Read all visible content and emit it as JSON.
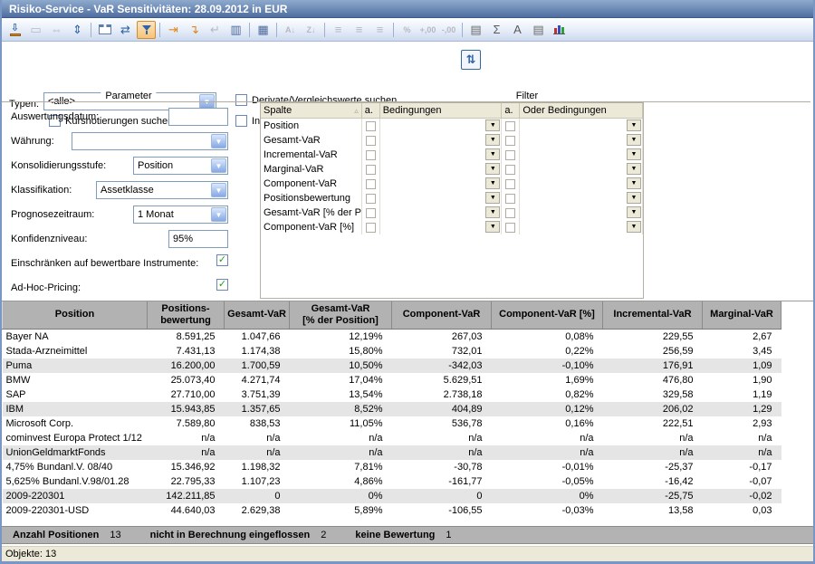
{
  "window": {
    "title": "Risiko-Service - VaR Sensitivitäten: 28.09.2012 in EUR"
  },
  "colors": {
    "titlebar_top": "#8ea9cc",
    "titlebar_bottom": "#4e6d9f",
    "active_tool_accent": "#d28a2c",
    "check_green": "#1fa11f",
    "table_header_gray": "#b2b2b2",
    "shaded_row": "#e5e5e5",
    "statusbar_beige": "#ece9d8"
  },
  "toolbar": {
    "icons": [
      {
        "name": "export-icon",
        "special": "export",
        "state": "enabled"
      },
      {
        "name": "zoom-selection-icon",
        "glyph": "▭",
        "state": "disabled"
      },
      {
        "name": "fit-width-icon",
        "glyph": "⇔",
        "state": "disabled"
      },
      {
        "name": "fit-height-icon",
        "glyph": "⇕",
        "color": "#2e63a8",
        "state": "enabled"
      },
      {
        "sep": true
      },
      {
        "name": "new-window-icon",
        "special": "window",
        "state": "enabled"
      },
      {
        "name": "refresh-icon",
        "glyph": "⇄",
        "color": "#2e63a8",
        "state": "enabled"
      },
      {
        "name": "filter-icon",
        "special": "funnel",
        "state": "active"
      },
      {
        "sep": true
      },
      {
        "name": "insert-column-icon",
        "glyph": "⇥",
        "color": "#e0871a",
        "state": "enabled"
      },
      {
        "name": "insert-value-icon",
        "glyph": "↴",
        "color": "#e0871a",
        "state": "enabled"
      },
      {
        "name": "remove-value-icon",
        "glyph": "↵",
        "state": "disabled"
      },
      {
        "name": "column-options-icon",
        "glyph": "▥",
        "color": "#4a6a9d",
        "state": "enabled"
      },
      {
        "sep": true
      },
      {
        "name": "show-columns-icon",
        "glyph": "▦",
        "color": "#4a6a9d",
        "state": "enabled"
      },
      {
        "sep": true
      },
      {
        "name": "sort-ascending-icon",
        "text": "A↓",
        "state": "disabled"
      },
      {
        "name": "sort-descending-icon",
        "text": "Z↓",
        "state": "disabled"
      },
      {
        "sep": true
      },
      {
        "name": "align-left-icon",
        "glyph": "≡",
        "state": "disabled"
      },
      {
        "name": "align-center-icon",
        "glyph": "≡",
        "state": "disabled"
      },
      {
        "name": "align-right-icon",
        "glyph": "≡",
        "state": "disabled"
      },
      {
        "sep": true
      },
      {
        "name": "percent-format-icon",
        "text": "%",
        "state": "disabled"
      },
      {
        "name": "add-decimal-icon",
        "text": "+,00",
        "state": "disabled"
      },
      {
        "name": "remove-decimal-icon",
        "text": "-,00",
        "state": "disabled"
      },
      {
        "sep": true
      },
      {
        "name": "value-options-icon",
        "glyph": "▤",
        "color": "#6a6a6a",
        "state": "enabled"
      },
      {
        "name": "sum-icon",
        "glyph": "Σ",
        "color": "#5a5a5a",
        "state": "enabled"
      },
      {
        "name": "font-icon",
        "glyph": "A",
        "color": "#5a5a5a",
        "state": "enabled"
      },
      {
        "name": "format-options-icon",
        "glyph": "▤",
        "color": "#6a6a6a",
        "state": "enabled"
      },
      {
        "name": "chart-icon",
        "special": "chart",
        "colors": [
          "#c03030",
          "#3050c0",
          "#30a030"
        ],
        "state": "enabled"
      }
    ]
  },
  "form": {
    "typen_label": "Typen:",
    "typen_value": "<alle>",
    "kursnotierungen_checkbox": "Kursnotierungen suchen",
    "derivate_checkbox": "Derivate/Vergleichswerte suchen",
    "index_checkbox": "Indexzusammenstellungen darstellen"
  },
  "parameter_panel": {
    "caption": "Parameter",
    "fields": [
      {
        "name": "auswertungsdatum-input",
        "label": "Auswertungsdatum:",
        "type": "input",
        "value": ""
      },
      {
        "name": "waehrung-select",
        "label": "Währung:",
        "type": "select",
        "value": ""
      },
      {
        "name": "konsolidierungsstufe-select",
        "label": "Konsolidierungsstufe:",
        "type": "select",
        "value": "Position"
      },
      {
        "name": "klassifikation-select",
        "label": "Klassifikation:",
        "type": "select",
        "value": "Assetklasse"
      },
      {
        "name": "prognosezeitraum-select",
        "label": "Prognosezeitraum:",
        "type": "select",
        "value": "1 Monat"
      },
      {
        "name": "konfidenzniveau-input",
        "label": "Konfidenzniveau:",
        "type": "input",
        "value": "95%"
      },
      {
        "name": "bewertbare-instrumente-checkbox",
        "label": "Einschränken auf bewertbare Instrumente:",
        "type": "checkbox",
        "checked": true
      },
      {
        "name": "adhoc-pricing-checkbox",
        "label": "Ad-Hoc-Pricing:",
        "type": "checkbox",
        "checked": true
      }
    ]
  },
  "filter_panel": {
    "caption": "Filter",
    "columns": [
      "Spalte",
      "a.",
      "Bedingungen",
      "a.",
      "Oder Bedingungen"
    ],
    "rows": [
      "Position",
      "Gesamt-VaR",
      "Incremental-VaR",
      "Marginal-VaR",
      "Component-VaR",
      "Positionsbewertung",
      "Gesamt-VaR [% der Position]",
      "Component-VaR [%]"
    ]
  },
  "table": {
    "columns": [
      {
        "l1": "Position",
        "l2": ""
      },
      {
        "l1": "Positions-",
        "l2": "bewertung"
      },
      {
        "l1": "Gesamt-VaR",
        "l2": ""
      },
      {
        "l1": "Gesamt-VaR",
        "l2": "[% der Position]"
      },
      {
        "l1": "Component-VaR",
        "l2": ""
      },
      {
        "l1": "Component-VaR [%]",
        "l2": ""
      },
      {
        "l1": "Incremental-VaR",
        "l2": ""
      },
      {
        "l1": "Marginal-VaR",
        "l2": ""
      }
    ],
    "rows": [
      [
        "Bayer NA",
        "8.591,25",
        "1.047,66",
        "12,19%",
        "267,03",
        "0,08%",
        "229,55",
        "2,67"
      ],
      [
        "Stada-Arzneimittel",
        "7.431,13",
        "1.174,38",
        "15,80%",
        "732,01",
        "0,22%",
        "256,59",
        "3,45"
      ],
      [
        "Puma",
        "16.200,00",
        "1.700,59",
        "10,50%",
        "-342,03",
        "-0,10%",
        "176,91",
        "1,09"
      ],
      [
        "BMW",
        "25.073,40",
        "4.271,74",
        "17,04%",
        "5.629,51",
        "1,69%",
        "476,80",
        "1,90"
      ],
      [
        "SAP",
        "27.710,00",
        "3.751,39",
        "13,54%",
        "2.738,18",
        "0,82%",
        "329,58",
        "1,19"
      ],
      [
        "IBM",
        "15.943,85",
        "1.357,65",
        "8,52%",
        "404,89",
        "0,12%",
        "206,02",
        "1,29"
      ],
      [
        "Microsoft Corp.",
        "7.589,80",
        "838,53",
        "11,05%",
        "536,78",
        "0,16%",
        "222,51",
        "2,93"
      ],
      [
        "cominvest Europa Protect 1/12",
        "n/a",
        "n/a",
        "n/a",
        "n/a",
        "n/a",
        "n/a",
        "n/a"
      ],
      [
        "UnionGeldmarktFonds",
        "n/a",
        "n/a",
        "n/a",
        "n/a",
        "n/a",
        "n/a",
        "n/a"
      ],
      [
        "4,75% Bundanl.V. 08/40",
        "15.346,92",
        "1.198,32",
        "7,81%",
        "-30,78",
        "-0,01%",
        "-25,37",
        "-0,17"
      ],
      [
        "5,625% Bundanl.V.98/01.28",
        "22.795,33",
        "1.107,23",
        "4,86%",
        "-161,77",
        "-0,05%",
        "-16,42",
        "-0,07"
      ],
      [
        "2009-220301",
        "142.211,85",
        "0",
        "0%",
        "0",
        "0%",
        "-25,75",
        "-0,02"
      ],
      [
        "2009-220301-USD",
        "44.640,03",
        "2.629,38",
        "5,89%",
        "-106,55",
        "-0,03%",
        "13,58",
        "0,03"
      ]
    ]
  },
  "summary_bar": {
    "items": [
      {
        "label": "Anzahl Positionen",
        "value": "13"
      },
      {
        "label": "nicht in Berechnung eingeflossen",
        "value": "2"
      },
      {
        "label": "keine Bewertung",
        "value": "1"
      }
    ]
  },
  "status_bar": {
    "text": "Objekte: 13"
  }
}
